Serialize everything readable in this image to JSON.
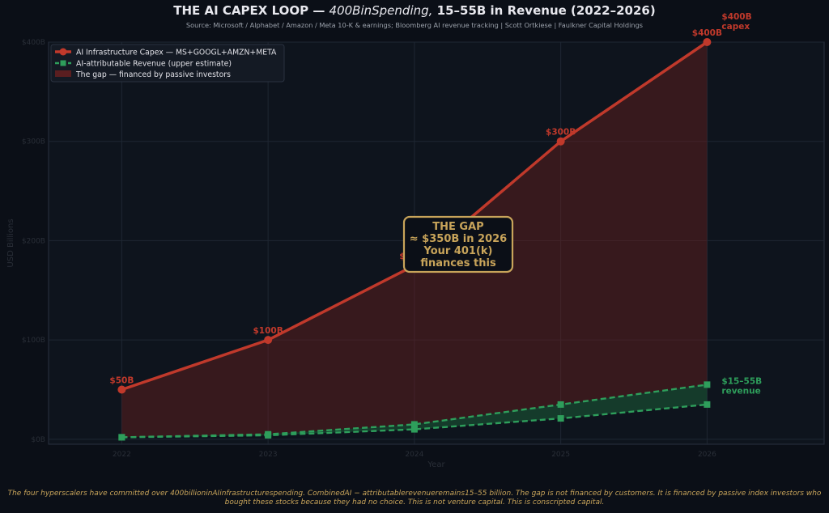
{
  "chart_data": {
    "type": "line",
    "title": {
      "prefix": "THE AI CAPEX LOOP — ",
      "italic_part": "400BinSpending,",
      "suffix": "15–55B in Revenue (2022–2026)"
    },
    "subtitle": "Source: Microsoft / Alphabet / Amazon / Meta 10-K & earnings; Bloomberg AI revenue tracking  |  Scott Ortkiese  |  Faulkner Capital Holdings",
    "xlabel": "Year",
    "ylabel": "USD Billions",
    "x": [
      2022,
      2023,
      2024,
      2025,
      2026
    ],
    "ylim": [
      -5,
      400
    ],
    "xlim": [
      2021.5,
      2026.8
    ],
    "y_ticks": [
      0,
      100,
      200,
      300,
      400
    ],
    "y_tick_labels": [
      "$0B",
      "$100B",
      "$200B",
      "$300B",
      "$400B"
    ],
    "grid": true,
    "legend_position": "top-left",
    "series": [
      {
        "name": "AI Infrastructure Capex — MS+GOOGL+AMZN+META",
        "values": [
          50,
          100,
          175,
          300,
          400
        ],
        "point_labels": [
          "$50B",
          "$100B",
          "$175B",
          "$300B",
          "$400B"
        ],
        "color": "#c0392b",
        "end_label": [
          "$400B",
          "capex"
        ]
      },
      {
        "name": "AI-attributable Revenue (upper estimate)",
        "values": [
          2,
          5,
          15,
          35,
          55
        ],
        "color": "#2e9e5b",
        "end_label": [
          "$15–55B",
          "revenue"
        ]
      },
      {
        "name": "",
        "values": [
          2,
          4,
          10,
          21,
          35
        ],
        "color": "#2e9e5b"
      }
    ],
    "gap_legend": "The gap — financed by passive investors",
    "annotation": [
      "THE GAP",
      "≈ $350B in 2026",
      "Your 401(k)",
      "finances this"
    ],
    "colors": {
      "capex": "#c0392b",
      "revenue": "#2e9e5b",
      "annotation_border": "#c8a45a",
      "background": "#0b0f17",
      "plot_bg": "#0e141d"
    }
  },
  "footnote": [
    "The four hyperscalers have committed over 400billioninAIinfrastructurespending. CombinedAI − attributablerevenueremains15–55 billion. The gap is not financed by customers. It is financed by passive index investors who",
    "bought these stocks because they had no choice. This is not venture capital. This is conscripted capital."
  ]
}
